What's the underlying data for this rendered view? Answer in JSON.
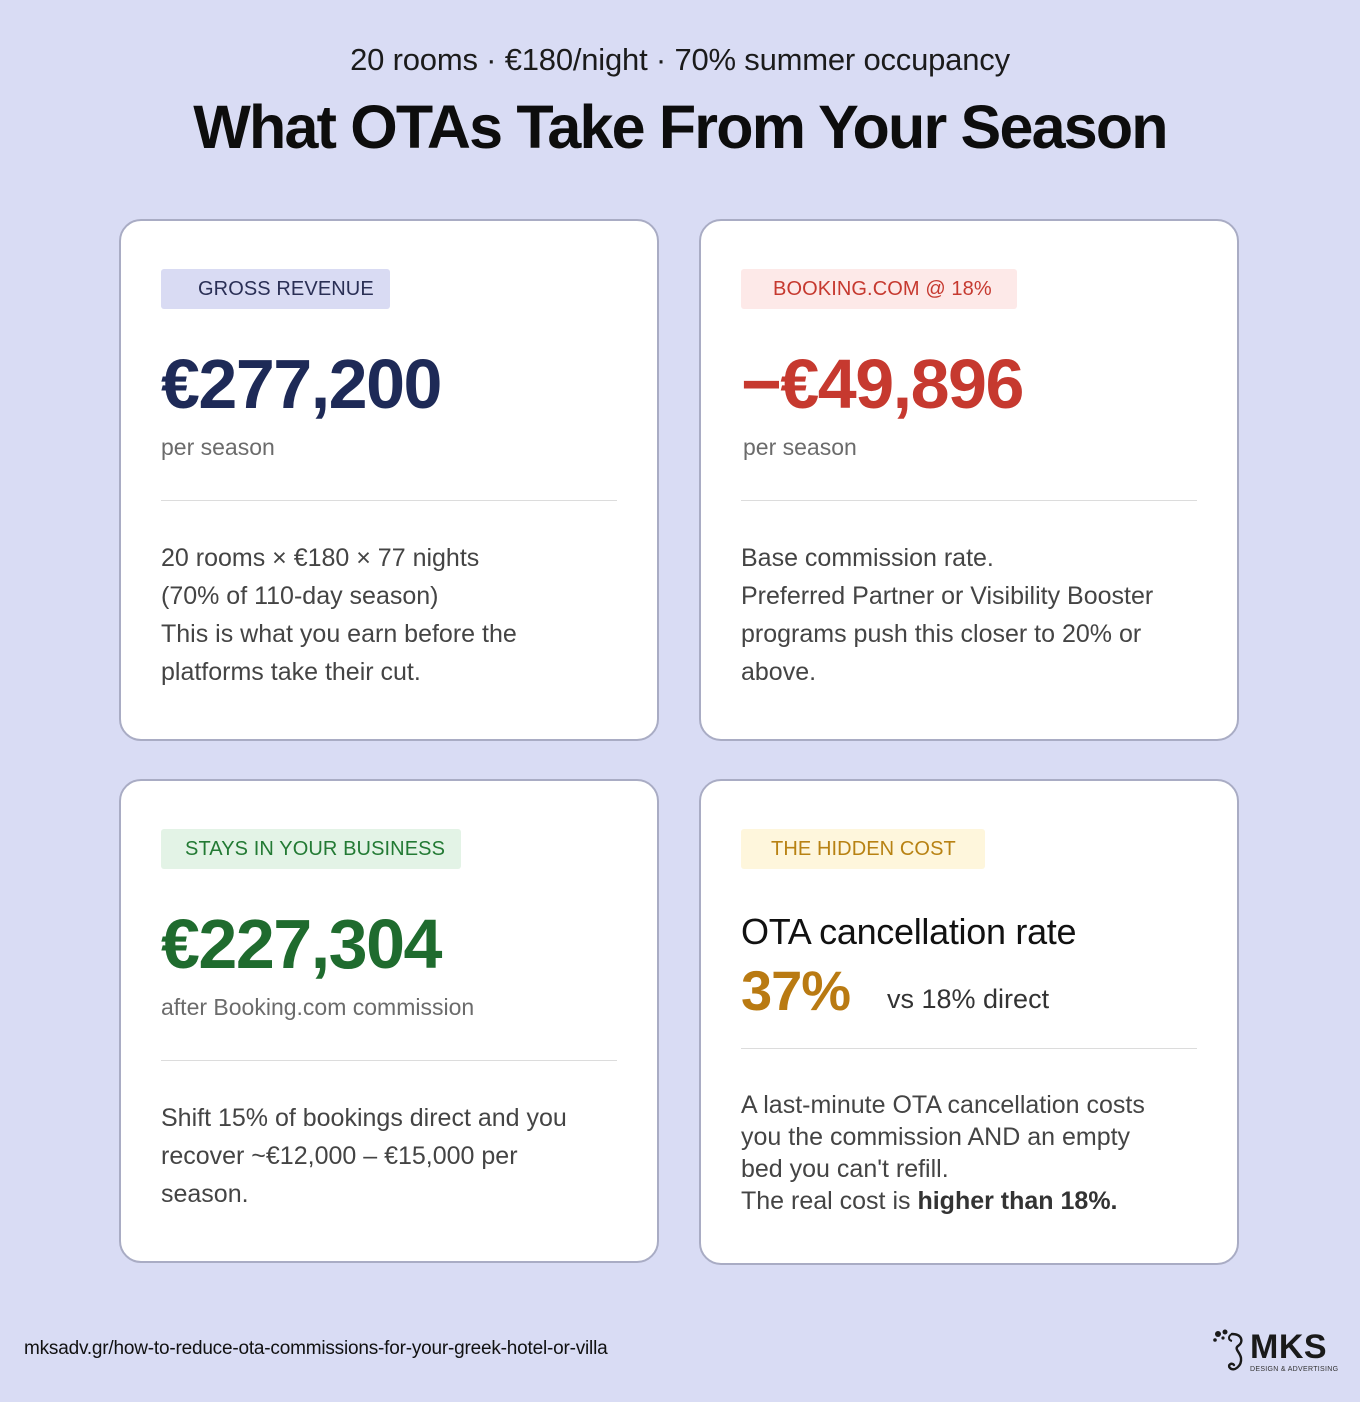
{
  "header": {
    "subtitle": "20 rooms · €180/night · 70% summer occupancy",
    "title": "What OTAs Take From Your Season"
  },
  "cards": {
    "gross": {
      "badge": "GROSS REVENUE",
      "value": "€277,200",
      "unit": "per season",
      "lines": [
        "20 rooms × €180 × 77 nights",
        "(70% of 110-day season)",
        "This is what you earn before the",
        "platforms take their cut."
      ]
    },
    "booking": {
      "badge": "BOOKING.COM @ 18%",
      "value": "−€49,896",
      "unit": "per season",
      "lines": [
        "Base commission rate.",
        "Preferred Partner or Visibility Booster",
        "programs push this closer to 20% or",
        "above."
      ]
    },
    "stays": {
      "badge": "STAYS IN YOUR BUSINESS",
      "value": "€227,304",
      "unit": "after Booking.com commission",
      "lines": [
        "Shift 15% of bookings direct and you",
        "recover ~€12,000 – €15,000 per",
        "season."
      ]
    },
    "hidden": {
      "badge": "THE HIDDEN COST",
      "label": "OTA cancellation rate",
      "percent": "37%",
      "comparison": "vs 18% direct",
      "lines": [
        "A last-minute OTA cancellation costs",
        "you the commission AND an empty",
        "bed you can't refill."
      ],
      "last_line_prefix": "The real cost is ",
      "last_line_bold": "higher than 18%."
    }
  },
  "footer": {
    "url": "mksadv.gr/how-to-reduce-ota-commissions-for-your-greek-hotel-or-villa",
    "logo_text": "MKS",
    "logo_tagline": "DESIGN & ADVERTISING",
    "logo_icon": "seahorse-icon"
  },
  "colors": {
    "background": "#d9dcf4",
    "navy": "#1e2a57",
    "red": "#c6392f",
    "green": "#1f6b2e",
    "gold": "#b97a12"
  }
}
